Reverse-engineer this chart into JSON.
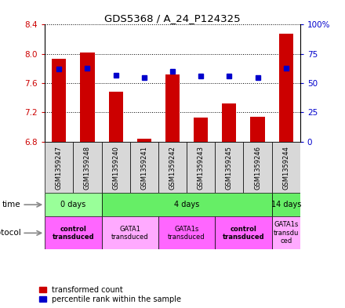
{
  "title": "GDS5368 / A_24_P124325",
  "samples": [
    "GSM1359247",
    "GSM1359248",
    "GSM1359240",
    "GSM1359241",
    "GSM1359242",
    "GSM1359243",
    "GSM1359245",
    "GSM1359246",
    "GSM1359244"
  ],
  "transformed_count": [
    7.93,
    8.02,
    7.48,
    6.84,
    7.72,
    7.13,
    7.32,
    7.14,
    8.28
  ],
  "percentile_rank": [
    62,
    63,
    57,
    55,
    60,
    56,
    56,
    55,
    63
  ],
  "ylim": [
    6.8,
    8.4
  ],
  "yticks": [
    6.8,
    7.2,
    7.6,
    8.0,
    8.4
  ],
  "right_yticks": [
    0,
    25,
    50,
    75,
    100
  ],
  "right_ylim": [
    0,
    100
  ],
  "bar_color": "#cc0000",
  "dot_color": "#0000cc",
  "bar_bottom": 6.8,
  "time_groups": [
    {
      "label": "0 days",
      "start": 0,
      "end": 2,
      "color": "#99ff99"
    },
    {
      "label": "4 days",
      "start": 2,
      "end": 8,
      "color": "#66ee66"
    },
    {
      "label": "14 days",
      "start": 8,
      "end": 9,
      "color": "#66ee66"
    }
  ],
  "protocol_groups": [
    {
      "label": "control\ntransduced",
      "start": 0,
      "end": 2,
      "color": "#ff66ff",
      "bold": true
    },
    {
      "label": "GATA1\ntransduced",
      "start": 2,
      "end": 4,
      "color": "#ffaaff",
      "bold": false
    },
    {
      "label": "GATA1s\ntransduced",
      "start": 4,
      "end": 6,
      "color": "#ff66ff",
      "bold": false
    },
    {
      "label": "control\ntransduced",
      "start": 6,
      "end": 8,
      "color": "#ff66ff",
      "bold": true
    },
    {
      "label": "GATA1s\ntransdu\nced",
      "start": 8,
      "end": 9,
      "color": "#ffaaff",
      "bold": false
    }
  ],
  "grid_color": "#000000",
  "background_color": "#ffffff",
  "plot_bg": "#ffffff",
  "tick_label_color_left": "#cc0000",
  "tick_label_color_right": "#0000cc",
  "sample_box_color": "#d8d8d8",
  "legend_items": [
    {
      "color": "#cc0000",
      "label": "transformed count"
    },
    {
      "color": "#0000cc",
      "label": "percentile rank within the sample"
    }
  ]
}
